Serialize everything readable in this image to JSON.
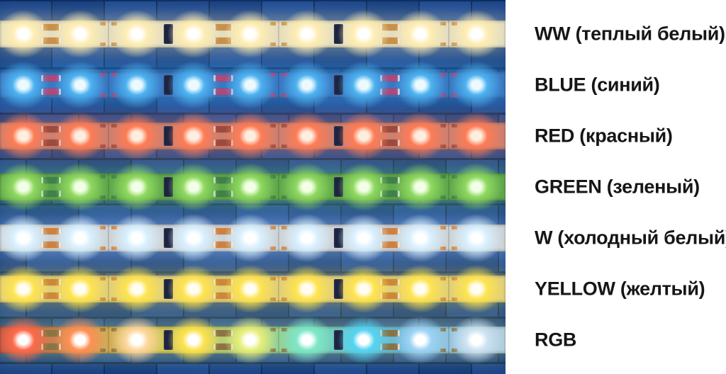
{
  "panel": {
    "background": "#ffffff",
    "text_color": "#161616"
  },
  "wall": {
    "brick_faces": [
      "#17428a",
      "#123c80",
      "#1a4892"
    ],
    "mortar": "#0a2a5a"
  },
  "chip_color": "#1d2442",
  "led_count_per_strip": 9,
  "strips": [
    {
      "id": "ww",
      "label": "WW (теплый белый)",
      "body": "#e4ddc0",
      "led_center": "#ffffff",
      "halo": "#ffeeb2",
      "resistor": "#c89048"
    },
    {
      "id": "blue",
      "label": "BLUE (синий)",
      "body": "#3a78c2",
      "led_center": "#ecfaff",
      "halo": "#4db4f2",
      "resistor": "#b04878"
    },
    {
      "id": "red",
      "label": "RED (красный)",
      "body": "#cd8070",
      "led_center": "#ffeee0",
      "halo": "#ff7c55",
      "resistor": "#9c4a3c"
    },
    {
      "id": "green",
      "label": "GREEN (зеленый)",
      "body": "#61a84c",
      "led_center": "#f2ffe6",
      "halo": "#90da60",
      "resistor": "#40804a"
    },
    {
      "id": "w",
      "label": "W (холодный белый)",
      "body": "#cdd3d6",
      "led_center": "#ffffff",
      "halo": "#d8f0ff",
      "resistor": "#d0803c"
    },
    {
      "id": "yellow",
      "label": "YELLOW (желтый)",
      "body": "#e2d077",
      "led_center": "#fffdf2",
      "halo": "#ffe44e",
      "resistor": "#cc8838"
    },
    {
      "id": "rgb",
      "label": "RGB",
      "led_center": "#ffffff",
      "resistor": "#8a7444",
      "body_gradient": [
        "#c05a46",
        "#c88050",
        "#d0a856",
        "#d4c45a",
        "#c8cc66",
        "#aad084",
        "#84d2a8",
        "#66c8cc",
        "#6cb8d8",
        "#98c6de",
        "#b4cede"
      ],
      "led_halos": [
        "#ff6a4a",
        "#ff9055",
        "#ffd9a0",
        "#ffe34d",
        "#e9f07a",
        "#7de8c8",
        "#55d4f2",
        "#9fd4f5",
        "#cfe4f2"
      ]
    }
  ]
}
